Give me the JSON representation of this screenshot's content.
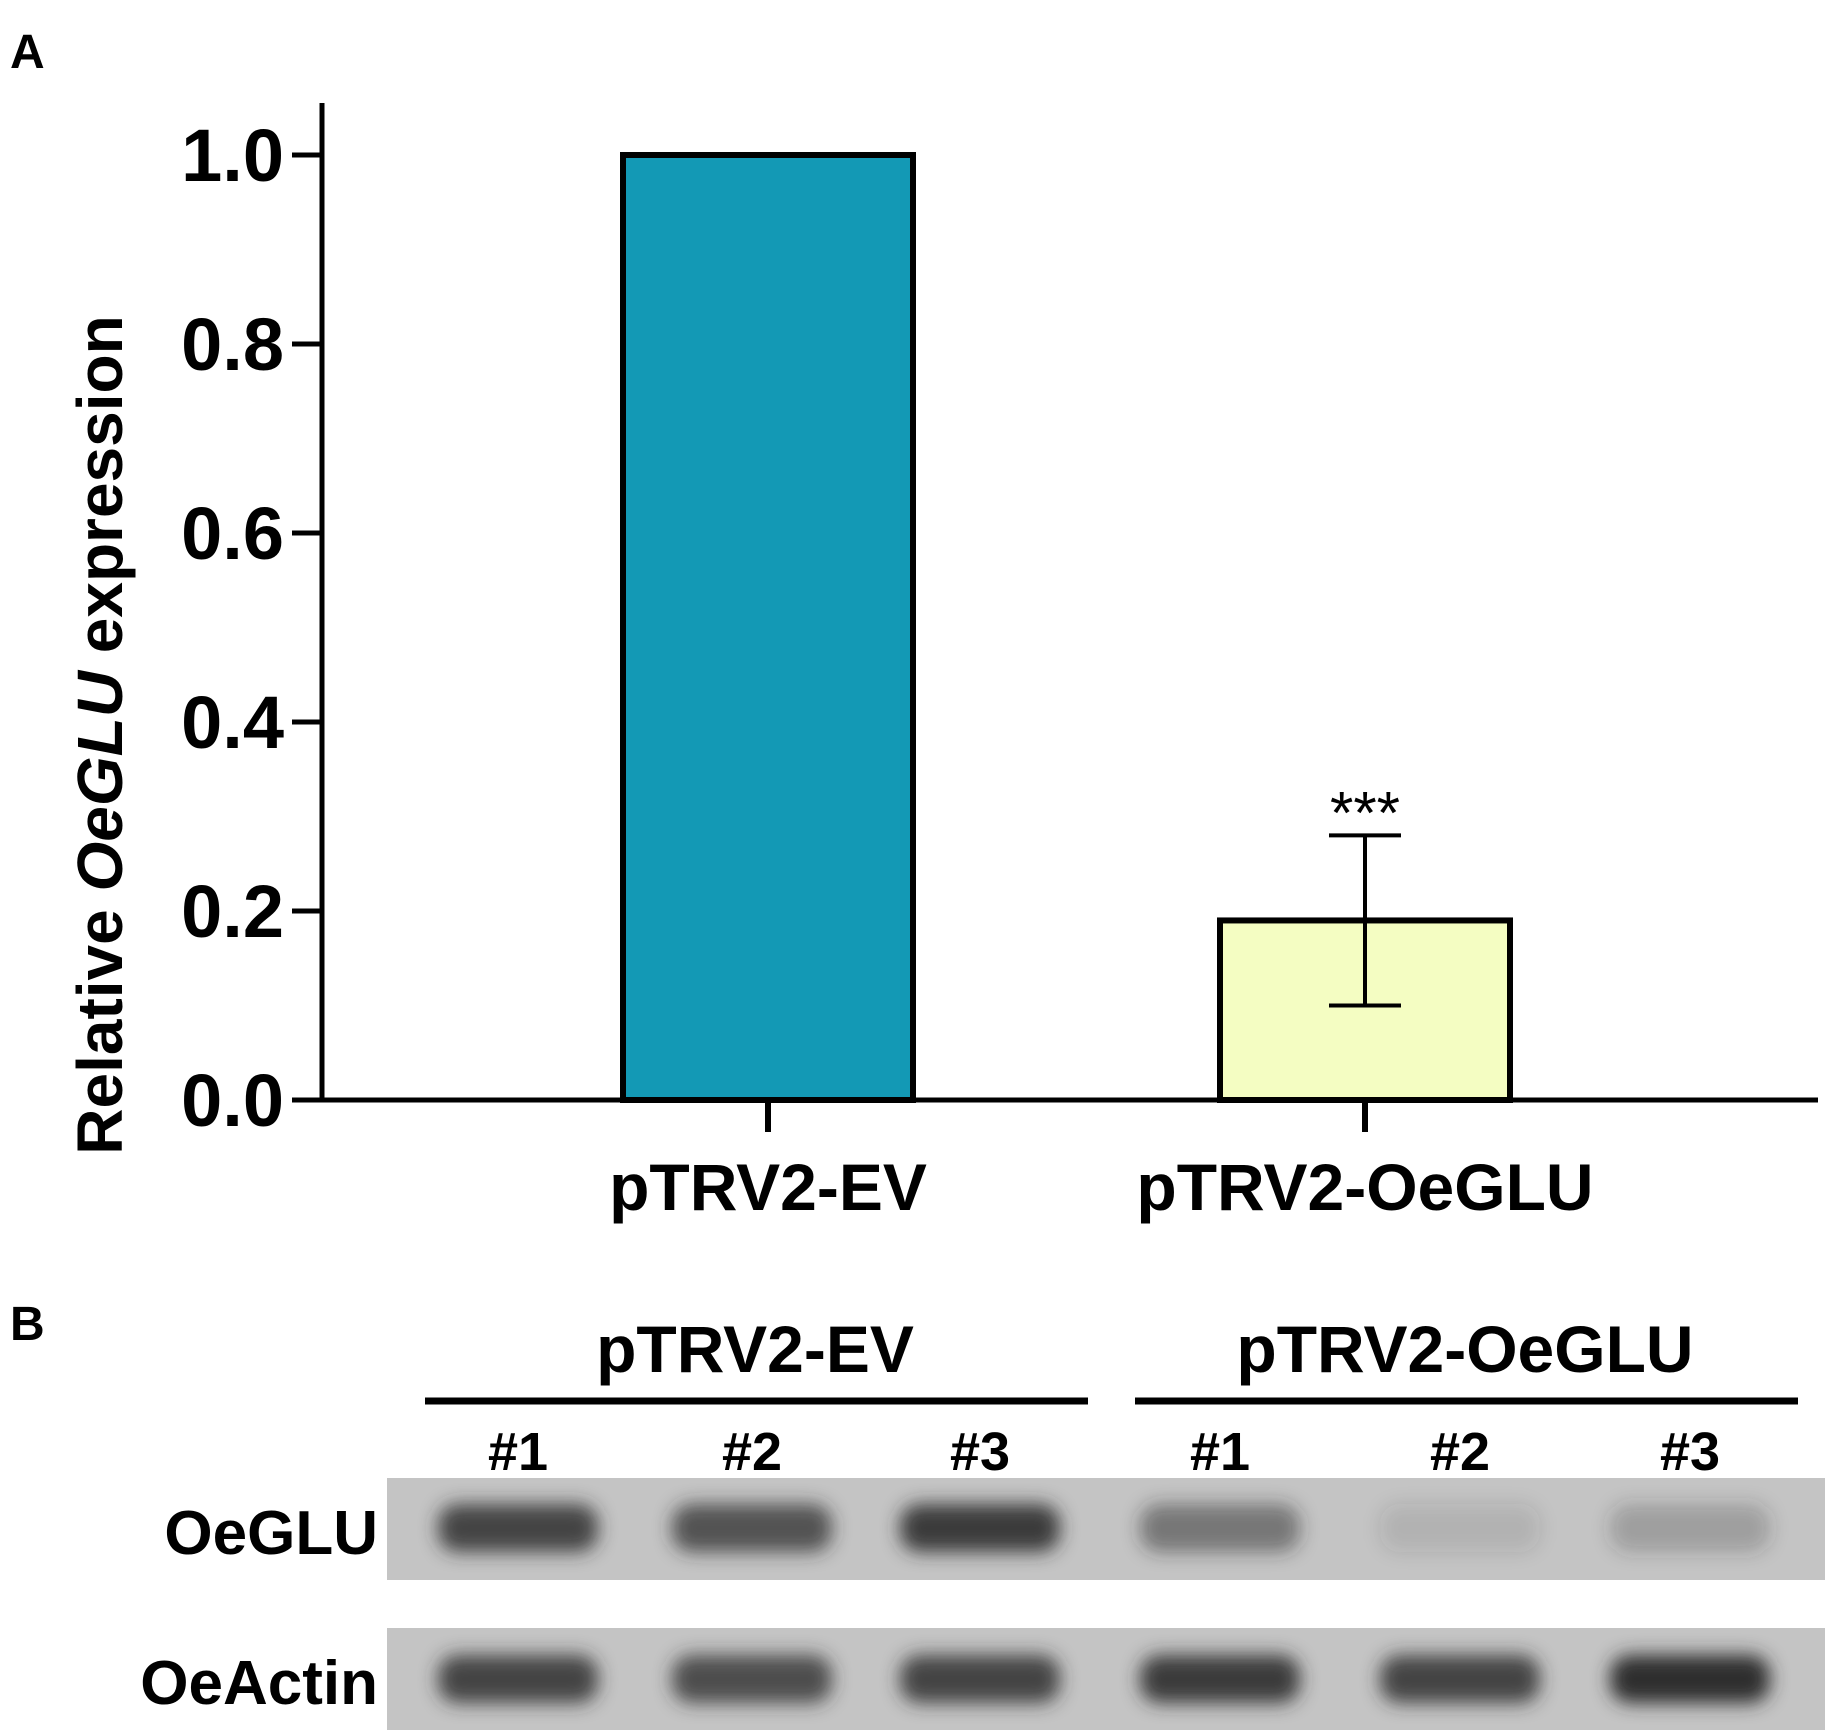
{
  "panels": {
    "a_label": "A",
    "b_label": "B"
  },
  "chart_data": {
    "type": "bar",
    "categories": [
      "pTRV2-EV",
      "pTRV2-OeGLU"
    ],
    "values": [
      1.0,
      0.19
    ],
    "error_upper": [
      1.0,
      0.28
    ],
    "error_lower": [
      1.0,
      0.1
    ],
    "ylabel_prefix": "Relative ",
    "ylabel_italic": "OeGLU",
    "ylabel_suffix": " expression",
    "ylim": [
      0,
      1.0
    ],
    "yticks": [
      "0.0",
      "0.2",
      "0.4",
      "0.6",
      "0.8",
      "1.0"
    ],
    "significance": [
      "",
      "***"
    ],
    "colors": [
      "#1399b5",
      "#f4fdc2"
    ],
    "grid": false
  },
  "blot": {
    "groups": [
      "pTRV2-EV",
      "pTRV2-OeGLU"
    ],
    "lanes": [
      "#1",
      "#2",
      "#3",
      "#1",
      "#2",
      "#3"
    ],
    "rows": [
      "OeGLU",
      "OeActin"
    ],
    "band_intensity": {
      "OeGLU": [
        0.85,
        0.75,
        0.9,
        0.5,
        0.12,
        0.25
      ],
      "OeActin": [
        0.85,
        0.8,
        0.85,
        0.9,
        0.85,
        1.0
      ]
    }
  }
}
